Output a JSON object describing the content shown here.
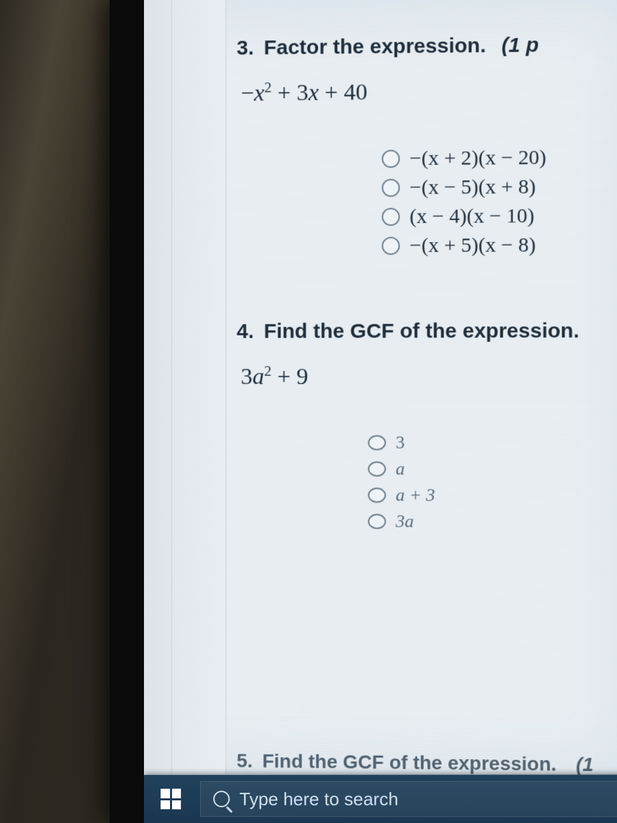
{
  "q3": {
    "number": "3.",
    "prompt": "Factor the expression.",
    "points": "(1 p",
    "expression_html": "−<i>x</i><sup>2</sup> + 3<i>x</i> + 40",
    "options": [
      "−(x + 2)(x − 20)",
      "−(x − 5)(x + 8)",
      "(x − 4)(x − 10)",
      "−(x + 5)(x − 8)"
    ]
  },
  "q4": {
    "number": "4.",
    "prompt": "Find the GCF of the expression.",
    "expression_html": "3<i>a</i><sup>2</sup> + 9",
    "options": [
      "3",
      "a",
      "a + 3",
      "3a"
    ]
  },
  "q5": {
    "number": "5.",
    "prompt": "Find the GCF of the expression.",
    "points": "(1"
  },
  "taskbar": {
    "search_placeholder": "Type here to search"
  },
  "colors": {
    "screen_bg": "#e8eef2",
    "text": "#1f2d3a",
    "taskbar": "#1a3750"
  }
}
